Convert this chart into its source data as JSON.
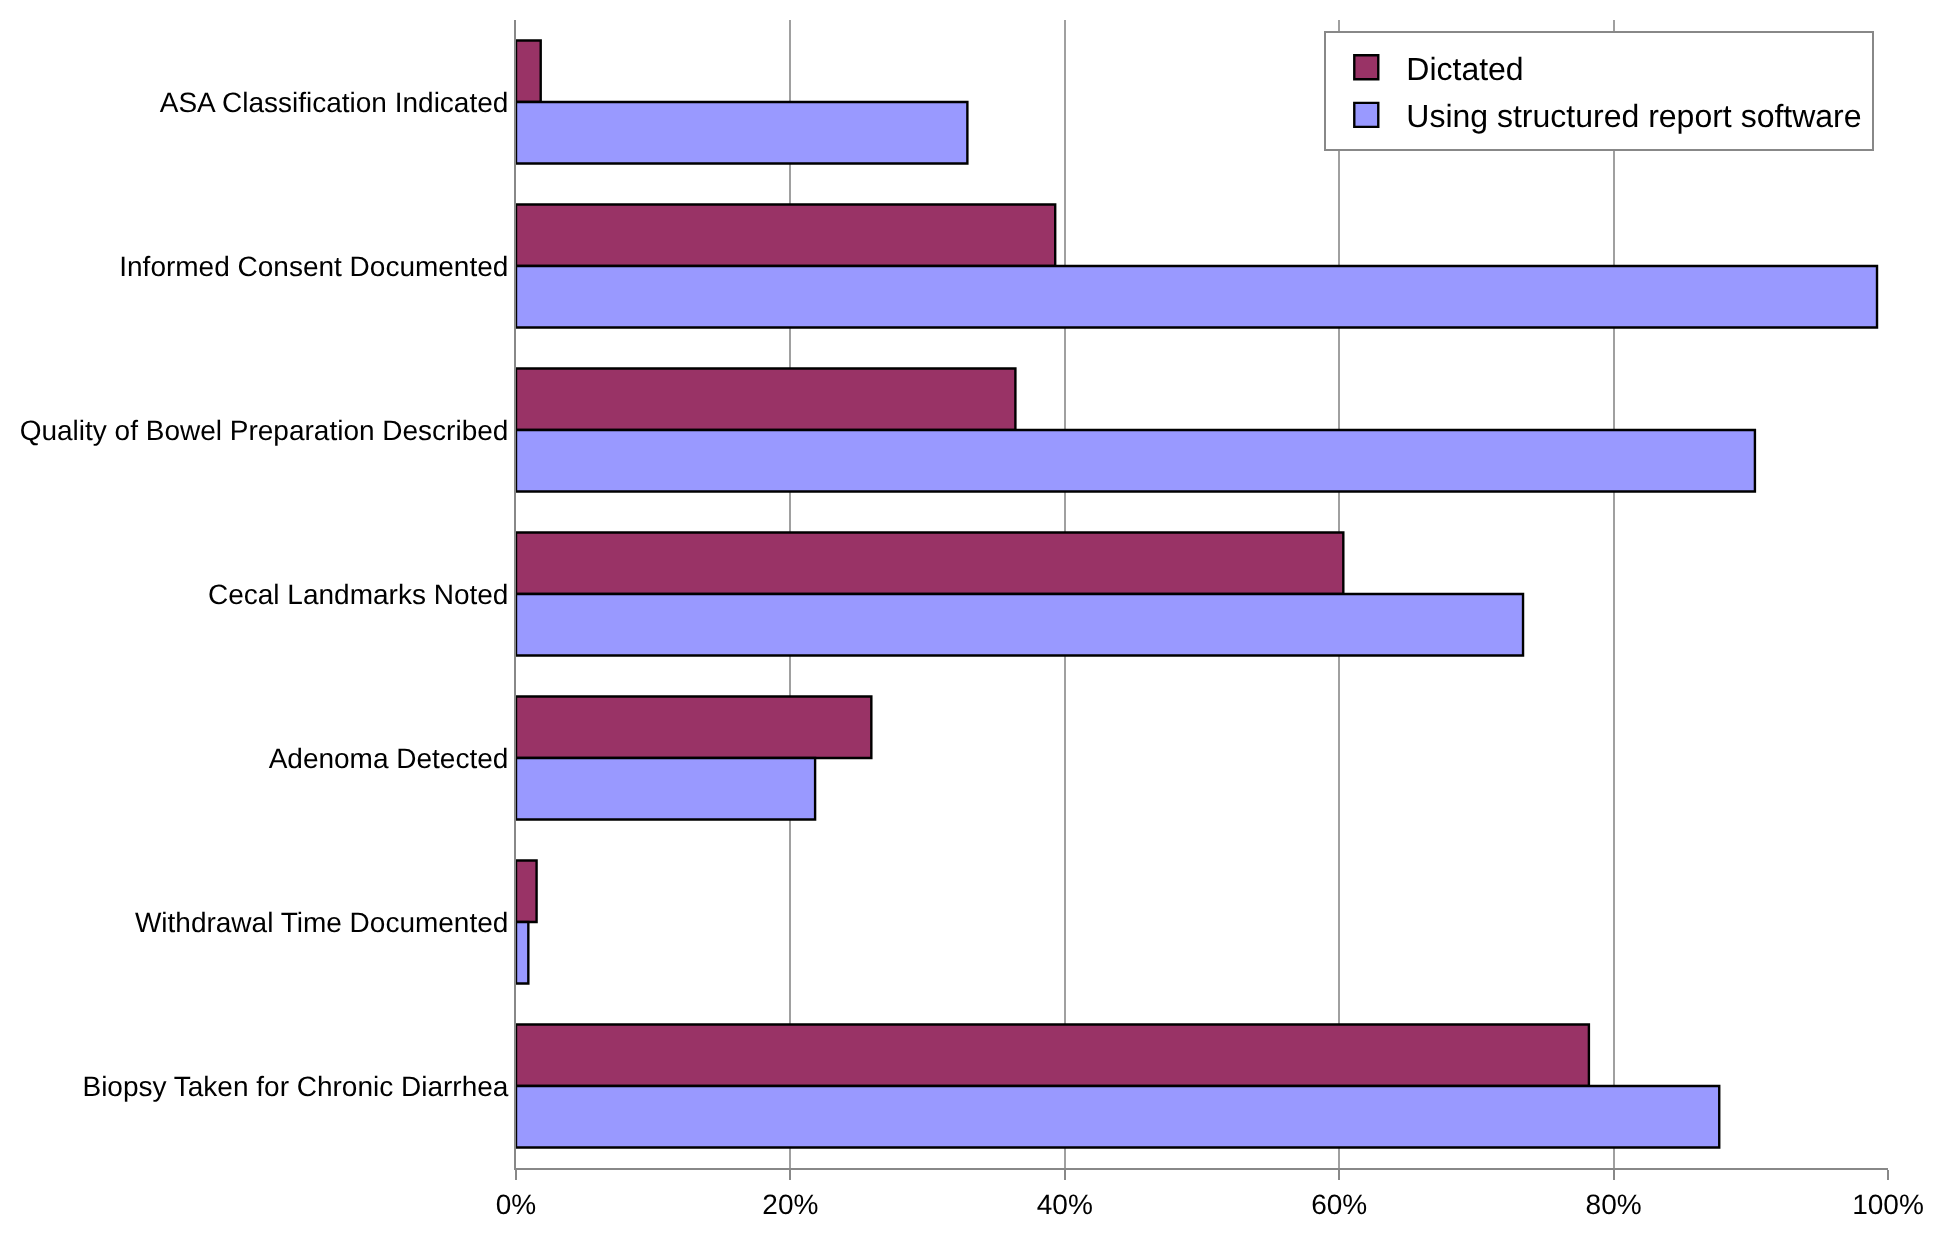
{
  "chart_data": {
    "type": "bar",
    "orientation": "horizontal",
    "categories": [
      "ASA Classification Indicated",
      "Informed Consent Documented",
      "Quality of Bowel Preparation Described",
      "Cecal Landmarks Noted",
      "Adenoma Detected",
      "Withdrawal Time Documented",
      "Biopsy Taken for Chronic Diarrhea"
    ],
    "series": [
      {
        "name": "Dictated",
        "color": "#993366",
        "values": [
          1.8,
          39.3,
          36.4,
          60.3,
          25.9,
          1.5,
          78.2
        ]
      },
      {
        "name": "Using structured report software",
        "color": "#9999ff",
        "values": [
          32.9,
          99.2,
          90.3,
          73.4,
          21.8,
          0.9,
          87.7
        ]
      }
    ],
    "xlim": [
      0,
      100
    ],
    "xticks": [
      {
        "value": 0,
        "label": "0%"
      },
      {
        "value": 20,
        "label": "20%"
      },
      {
        "value": 40,
        "label": "40%"
      },
      {
        "value": 60,
        "label": "60%"
      },
      {
        "value": 80,
        "label": "80%"
      },
      {
        "value": 100,
        "label": "100%"
      }
    ],
    "grid": "x",
    "legend": "top right"
  }
}
